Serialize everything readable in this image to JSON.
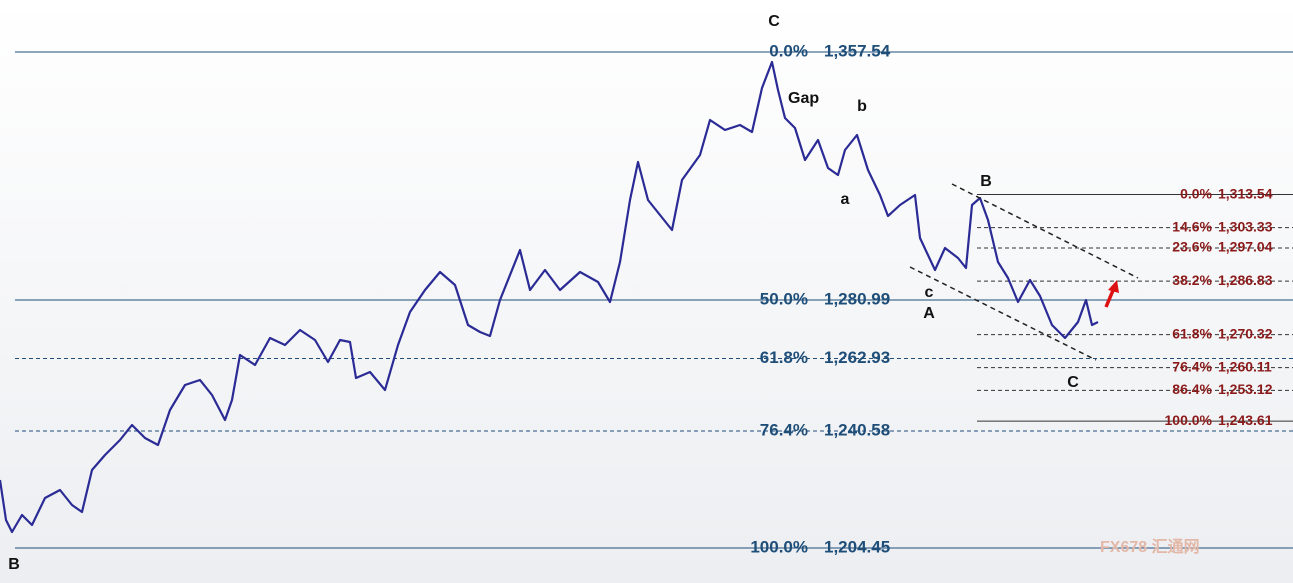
{
  "wave_labels": [
    "C",
    "Gap",
    "b",
    "a",
    "c",
    "A",
    "B",
    "C",
    "B"
  ],
  "fib_left": [
    {
      "ratio": "0.0%",
      "price": {
        "value": 1357.54,
        "label": "1,357.54"
      },
      "line": "solid"
    },
    {
      "ratio": "50.0%",
      "price": {
        "value": 1280.99,
        "label": "1,280.99"
      },
      "line": "solid"
    },
    {
      "ratio": "61.8%",
      "price": {
        "value": 1262.93,
        "label": "1,262.93"
      },
      "line": "dashed"
    },
    {
      "ratio": "76.4%",
      "price": {
        "value": 1240.58,
        "label": "1,240.58"
      },
      "line": "dashed"
    },
    {
      "ratio": "100.0%",
      "price": {
        "value": 1204.45,
        "label": "1,204.45"
      },
      "line": "solid"
    }
  ],
  "fib_right": [
    {
      "ratio": "0.0%",
      "price": {
        "value": 1313.54,
        "label": "1,313.54"
      },
      "line": "solid"
    },
    {
      "ratio": "14.6%",
      "price": {
        "value": 1303.33,
        "label": "1,303.33"
      },
      "line": "dashed"
    },
    {
      "ratio": "23.6%",
      "price": {
        "value": 1297.04,
        "label": "1,297.04"
      },
      "line": "dashed"
    },
    {
      "ratio": "38.2%",
      "price": {
        "value": 1286.83,
        "label": "1,286.83"
      },
      "line": "dashed"
    },
    {
      "ratio": "61.8%",
      "price": {
        "value": 1270.32,
        "label": "1,270.32"
      },
      "line": "dashed"
    },
    {
      "ratio": "76.4%",
      "price": {
        "value": 1260.11,
        "label": "1,260.11"
      },
      "line": "dashed"
    },
    {
      "ratio": "86.4%",
      "price": {
        "value": 1253.12,
        "label": "1,253.12"
      },
      "line": "dashed"
    },
    {
      "ratio": "100.0%",
      "price": {
        "value": 1243.61,
        "label": "1,243.61"
      },
      "line": "solid"
    }
  ],
  "watermark": "FX678 汇通网"
}
